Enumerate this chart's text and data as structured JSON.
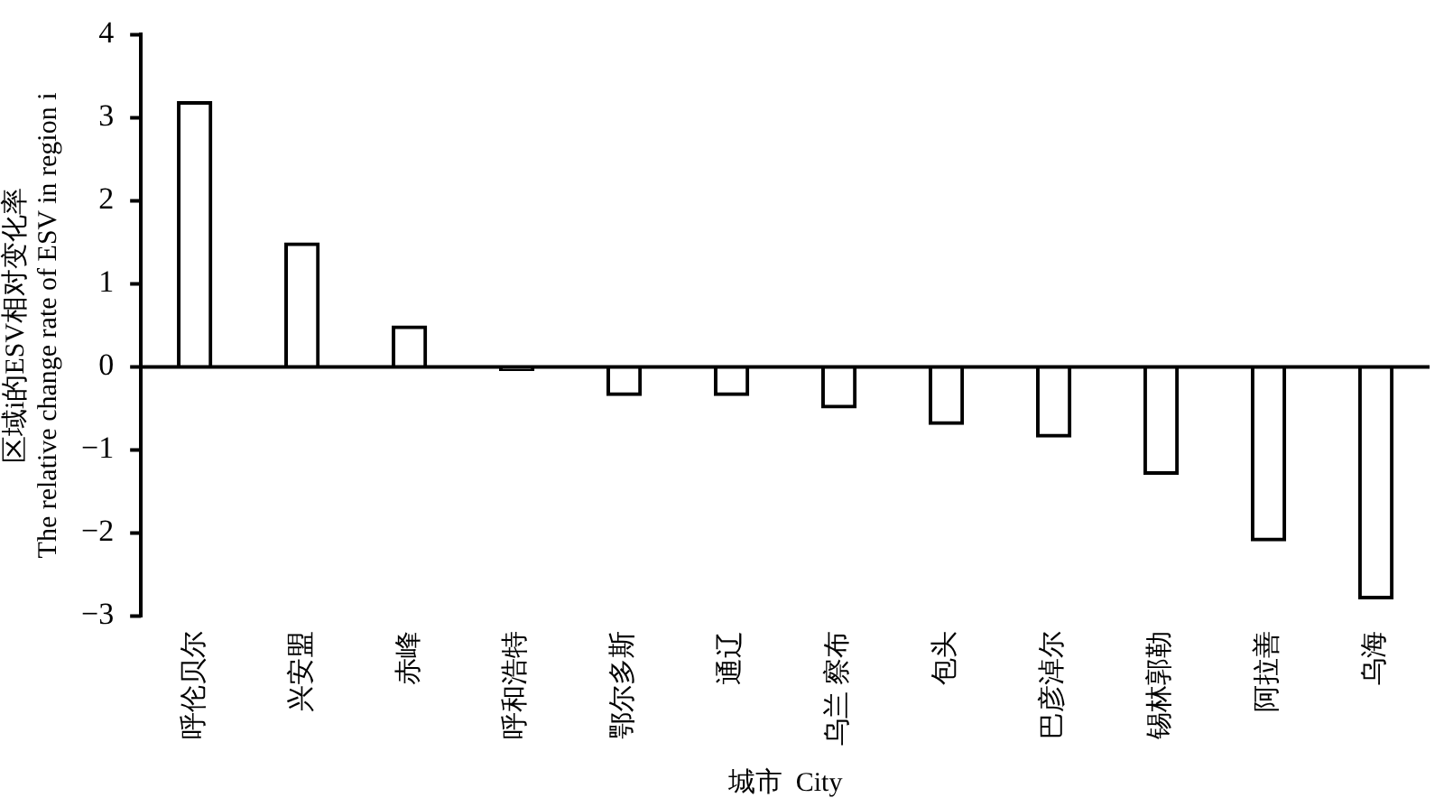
{
  "chart_data": {
    "type": "bar",
    "xlabel": "城市  City",
    "ylabel": [
      "区域i的ESV相对变化率",
      "The relative change rate of ESV in region i"
    ],
    "categories": [
      "呼伦贝尔",
      "兴安盟",
      "赤峰",
      "呼和浩特",
      "鄂尔多斯",
      "通辽",
      "乌兰 察布",
      "包头",
      "巴彦淖尔",
      "锡林郭勒",
      "阿拉善",
      "乌海"
    ],
    "values": [
      3.2,
      1.5,
      0.5,
      -0.05,
      -0.35,
      -0.35,
      -0.5,
      -0.7,
      -0.85,
      -1.3,
      -2.1,
      -2.8
    ],
    "color": "#000000",
    "ylim": [
      -3,
      4
    ],
    "yticks": [
      -3,
      -2,
      -1,
      0,
      1,
      2,
      3,
      4
    ],
    "ref_lines": [
      {
        "axis": "y",
        "value": 0,
        "color": "#000000"
      }
    ],
    "grid": false,
    "legend": false
  }
}
